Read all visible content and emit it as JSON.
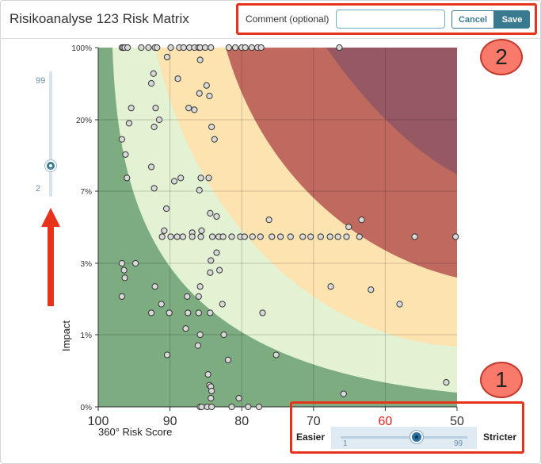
{
  "header": {
    "title": "Risikoanalyse 123 Risk Matrix",
    "comment_label": "Comment (optional)",
    "comment_value": "",
    "comment_placeholder": "",
    "cancel_label": "Cancel",
    "save_label": "Save"
  },
  "annotations": {
    "badge_1": "1",
    "badge_2": "2"
  },
  "impact_slider": {
    "max_label": "99",
    "min_label": "2",
    "value": 0.25
  },
  "threshold_slider": {
    "easier_label": "Easier",
    "stricter_label": "Stricter",
    "min_label": "1",
    "max_label": "99",
    "value": 60,
    "value_label": "60",
    "value_color": "#e0231e"
  },
  "colors": {
    "zone_low": "#7cac80",
    "zone_moderate": "#e2f2d2",
    "zone_elevated": "#fde3b0",
    "zone_high": "#c0695e",
    "zone_critical": "#965964",
    "point_fill": "#d9d9d9",
    "accent": "#3a7a90",
    "callout": "#e8331c"
  },
  "chart_data": {
    "type": "scatter",
    "xlabel": "360° Risk Score",
    "ylabel": "Impact",
    "x_ticks": [
      "100",
      "90",
      "80",
      "70",
      "60",
      "50"
    ],
    "y_ticks": [
      "100%",
      "20%",
      "7%",
      "3%",
      "1%",
      "0%"
    ],
    "xlim": [
      100,
      50
    ],
    "y_scale": "categorical-log",
    "zones": [
      "low",
      "moderate",
      "elevated",
      "high",
      "critical"
    ],
    "points": [
      [
        96.7,
        100
      ],
      [
        96.5,
        100
      ],
      [
        96.3,
        100
      ],
      [
        95.9,
        100
      ],
      [
        94.0,
        100
      ],
      [
        93.0,
        100
      ],
      [
        92.1,
        100
      ],
      [
        91.8,
        100
      ],
      [
        89.9,
        100
      ],
      [
        88.7,
        100
      ],
      [
        88.1,
        100
      ],
      [
        87.3,
        100
      ],
      [
        86.6,
        100
      ],
      [
        86.0,
        100
      ],
      [
        85.8,
        100
      ],
      [
        85.1,
        100
      ],
      [
        84.3,
        100
      ],
      [
        81.8,
        100
      ],
      [
        80.9,
        100
      ],
      [
        80.0,
        100
      ],
      [
        79.5,
        100
      ],
      [
        78.6,
        100
      ],
      [
        77.8,
        100
      ],
      [
        77.3,
        100
      ],
      [
        66.4,
        100
      ],
      [
        90.4,
        81
      ],
      [
        85.8,
        76
      ],
      [
        92.3,
        56
      ],
      [
        88.9,
        50
      ],
      [
        92.6,
        45
      ],
      [
        84.9,
        43
      ],
      [
        85.9,
        36
      ],
      [
        84.5,
        34
      ],
      [
        95.4,
        26
      ],
      [
        92.0,
        26
      ],
      [
        87.4,
        26
      ],
      [
        86.6,
        25
      ],
      [
        91.5,
        20
      ],
      [
        95.7,
        19
      ],
      [
        92.2,
        18
      ],
      [
        84.2,
        18
      ],
      [
        83.8,
        15
      ],
      [
        96.7,
        15
      ],
      [
        96.2,
        12
      ],
      [
        92.6,
        10
      ],
      [
        96.0,
        8.5
      ],
      [
        88.5,
        8.5
      ],
      [
        85.7,
        8.5
      ],
      [
        84.6,
        8.5
      ],
      [
        89.4,
        8.1
      ],
      [
        92.2,
        7.3
      ],
      [
        85.9,
        7.1
      ],
      [
        90.5,
        5.7
      ],
      [
        84.4,
        5.4
      ],
      [
        83.5,
        5.2
      ],
      [
        76.2,
        5.0
      ],
      [
        63.3,
        5.0
      ],
      [
        65.1,
        4.6
      ],
      [
        90.8,
        4.4
      ],
      [
        86.9,
        4.3
      ],
      [
        85.6,
        4.4
      ],
      [
        91.1,
        4.1
      ],
      [
        89.9,
        4.1
      ],
      [
        89.0,
        4.1
      ],
      [
        88.2,
        4.1
      ],
      [
        86.9,
        4.1
      ],
      [
        85.7,
        4.1
      ],
      [
        84.1,
        4.1
      ],
      [
        83.2,
        4.1
      ],
      [
        82.6,
        4.1
      ],
      [
        81.4,
        4.1
      ],
      [
        80.2,
        4.1
      ],
      [
        79.6,
        4.1
      ],
      [
        78.5,
        4.1
      ],
      [
        77.4,
        4.1
      ],
      [
        75.8,
        4.1
      ],
      [
        74.6,
        4.1
      ],
      [
        73.2,
        4.1
      ],
      [
        71.5,
        4.1
      ],
      [
        70.4,
        4.1
      ],
      [
        69.0,
        4.1
      ],
      [
        67.7,
        4.1
      ],
      [
        66.6,
        4.1
      ],
      [
        65.4,
        4.1
      ],
      [
        63.6,
        4.1
      ],
      [
        55.9,
        4.1
      ],
      [
        50.2,
        4.1
      ],
      [
        83.5,
        3.4
      ],
      [
        84.3,
        3.1
      ],
      [
        96.7,
        3.0
      ],
      [
        94.8,
        3.0
      ],
      [
        96.4,
        2.7
      ],
      [
        83.1,
        2.7
      ],
      [
        84.4,
        2.6
      ],
      [
        96.3,
        2.4
      ],
      [
        92.1,
        2.1
      ],
      [
        85.8,
        2.1
      ],
      [
        67.6,
        2.1
      ],
      [
        62.0,
        2.0
      ],
      [
        96.7,
        1.8
      ],
      [
        87.6,
        1.8
      ],
      [
        86.0,
        1.8
      ],
      [
        91.2,
        1.6
      ],
      [
        82.7,
        1.6
      ],
      [
        58.0,
        1.6
      ],
      [
        92.6,
        1.4
      ],
      [
        90.1,
        1.4
      ],
      [
        87.5,
        1.4
      ],
      [
        86.0,
        1.4
      ],
      [
        84.4,
        1.4
      ],
      [
        77.1,
        1.4
      ],
      [
        87.8,
        1.1
      ],
      [
        82.5,
        1.0
      ],
      [
        85.8,
        1.0
      ],
      [
        86.1,
        0.85
      ],
      [
        90.4,
        0.72
      ],
      [
        75.2,
        0.72
      ],
      [
        81.9,
        0.65
      ],
      [
        84.7,
        0.45
      ],
      [
        84.5,
        0.3
      ],
      [
        84.3,
        0.28
      ],
      [
        84.2,
        0.22
      ],
      [
        51.5,
        0.34
      ],
      [
        65.8,
        0.18
      ],
      [
        85.8,
        0
      ],
      [
        85.6,
        0
      ],
      [
        84.8,
        0
      ],
      [
        84.2,
        0
      ],
      [
        81.4,
        0
      ],
      [
        79.1,
        0
      ],
      [
        77.6,
        0
      ],
      [
        84.3,
        0.12
      ],
      [
        80.4,
        0.12
      ]
    ]
  }
}
